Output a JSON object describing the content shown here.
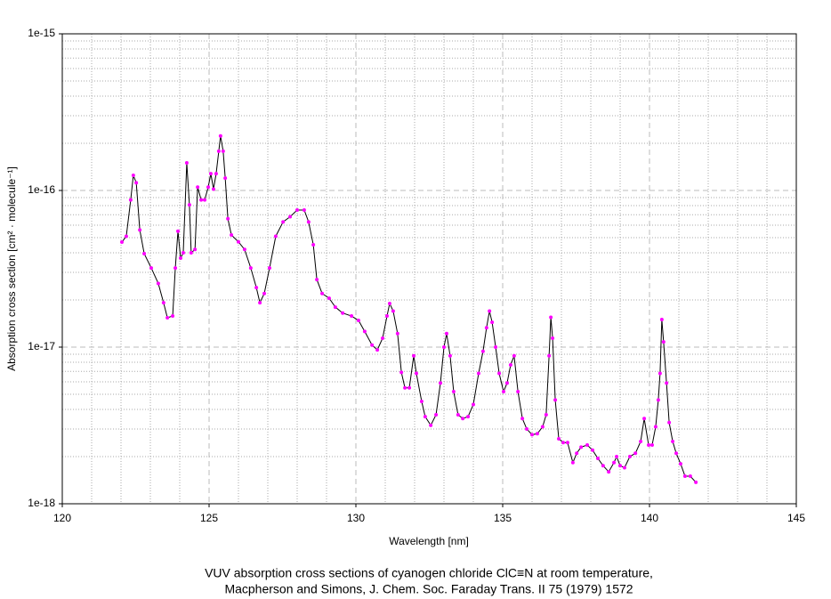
{
  "chart_data": {
    "type": "line",
    "title": [
      "VUV absorption cross sections of cyanogen chloride ClC≡N at room temperature,",
      "Macpherson and Simons,  J. Chem. Soc. Faraday Trans. II 75 (1979) 1572"
    ],
    "xlabel": "Wavelength [nm]",
    "ylabel": "Absorption cross section [cm² · molecule⁻¹]",
    "xlim": [
      120,
      145
    ],
    "xticks": [
      120,
      125,
      130,
      135,
      140,
      145
    ],
    "ylim": [
      1e-18,
      1e-15
    ],
    "yticks": [
      1e-18,
      1e-17,
      1e-16,
      1e-15
    ],
    "log_y": true,
    "grid": true,
    "minor_grid": true,
    "series": [
      {
        "color": "#000000",
        "marker_color": "#ff00ff",
        "x": [
          122.03,
          122.18,
          122.33,
          122.42,
          122.52,
          122.64,
          122.79,
          123.03,
          123.27,
          123.45,
          123.58,
          123.76,
          123.85,
          123.94,
          124.03,
          124.12,
          124.24,
          124.33,
          124.39,
          124.52,
          124.61,
          124.73,
          124.85,
          124.97,
          125.06,
          125.15,
          125.24,
          125.33,
          125.39,
          125.48,
          125.55,
          125.64,
          125.76,
          126.0,
          126.21,
          126.42,
          126.61,
          126.73,
          126.88,
          127.06,
          127.27,
          127.52,
          127.76,
          128.0,
          128.24,
          128.39,
          128.55,
          128.67,
          128.85,
          129.09,
          129.3,
          129.55,
          129.85,
          130.09,
          130.3,
          130.55,
          130.73,
          130.91,
          131.06,
          131.15,
          131.27,
          131.42,
          131.55,
          131.67,
          131.82,
          131.97,
          132.06,
          132.24,
          132.36,
          132.55,
          132.73,
          132.88,
          133.0,
          133.09,
          133.21,
          133.33,
          133.48,
          133.64,
          133.82,
          134.0,
          134.18,
          134.33,
          134.45,
          134.55,
          134.64,
          134.76,
          134.88,
          135.03,
          135.15,
          135.27,
          135.39,
          135.52,
          135.67,
          135.82,
          136.0,
          136.18,
          136.36,
          136.48,
          136.58,
          136.64,
          136.7,
          136.79,
          136.91,
          137.06,
          137.21,
          137.39,
          137.52,
          137.67,
          137.88,
          138.06,
          138.24,
          138.42,
          138.61,
          138.79,
          138.88,
          139.0,
          139.15,
          139.33,
          139.52,
          139.7,
          139.82,
          139.97,
          140.09,
          140.21,
          140.3,
          140.36,
          140.42,
          140.48,
          140.58,
          140.67,
          140.79,
          140.91,
          141.06,
          141.21,
          141.39,
          141.58
        ],
        "values": [
          4.68e-17,
          5.1e-17,
          8.7e-17,
          1.25e-16,
          1.12e-16,
          5.6e-17,
          3.95e-17,
          3.2e-17,
          2.55e-17,
          1.92e-17,
          1.54e-17,
          1.58e-17,
          3.2e-17,
          5.5e-17,
          3.7e-17,
          4e-17,
          1.5e-16,
          8.1e-17,
          4e-17,
          4.2e-17,
          1.05e-16,
          8.7e-17,
          8.7e-17,
          1.05e-16,
          1.28e-16,
          1.02e-16,
          1.28e-16,
          1.78e-16,
          2.23e-16,
          1.78e-16,
          1.2e-16,
          6.6e-17,
          5.2e-17,
          4.7e-17,
          4.2e-17,
          3.2e-17,
          2.4e-17,
          1.92e-17,
          2.2e-17,
          3.2e-17,
          5.1e-17,
          6.3e-17,
          6.8e-17,
          7.5e-17,
          7.5e-17,
          6.3e-17,
          4.5e-17,
          2.7e-17,
          2.2e-17,
          2.05e-17,
          1.8e-17,
          1.65e-17,
          1.58e-17,
          1.48e-17,
          1.26e-17,
          1.03e-17,
          9.6e-18,
          1.14e-17,
          1.58e-17,
          1.9e-17,
          1.7e-17,
          1.22e-17,
          6.9e-18,
          5.5e-18,
          5.5e-18,
          8.8e-18,
          6.8e-18,
          4.5e-18,
          3.6e-18,
          3.17e-18,
          3.7e-18,
          5.9e-18,
          1e-17,
          1.22e-17,
          8.8e-18,
          5.2e-18,
          3.7e-18,
          3.5e-18,
          3.6e-18,
          4.3e-18,
          6.8e-18,
          9.4e-18,
          1.33e-17,
          1.7e-17,
          1.44e-17,
          1e-17,
          6.8e-18,
          5.2e-18,
          5.9e-18,
          7.7e-18,
          8.8e-18,
          5.2e-18,
          3.5e-18,
          3e-18,
          2.76e-18,
          2.8e-18,
          3.1e-18,
          3.7e-18,
          8.8e-18,
          1.55e-17,
          1.14e-17,
          4.6e-18,
          2.6e-18,
          2.46e-18,
          2.46e-18,
          1.83e-18,
          2.1e-18,
          2.3e-18,
          2.37e-18,
          2.2e-18,
          1.95e-18,
          1.75e-18,
          1.6e-18,
          1.83e-18,
          2e-18,
          1.75e-18,
          1.7e-18,
          2e-18,
          2.1e-18,
          2.5e-18,
          3.5e-18,
          2.37e-18,
          2.37e-18,
          3.1e-18,
          4.6e-18,
          6.8e-18,
          1.5e-17,
          1.08e-17,
          5.9e-18,
          3.3e-18,
          2.5e-18,
          2.1e-18,
          1.8e-18,
          1.5e-18,
          1.5e-18,
          1.37e-18
        ]
      }
    ]
  }
}
